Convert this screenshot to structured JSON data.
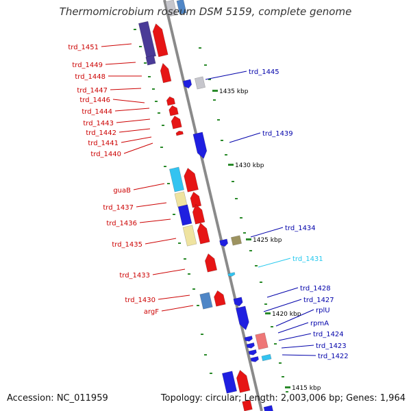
{
  "title": "Thermomicrobium roseum DSM 5159, complete genome",
  "footer": {
    "accession": "Accession: NC_011959",
    "topology": "Topology: circular; Length: 2,003,006 bp; Genes: 1,964"
  },
  "colors": {
    "red": "#e61515",
    "blue": "#1f1fe0",
    "dark_blue": "#4a3b97",
    "cyan": "#33c3f0",
    "pale_yellow": "#efe3a0",
    "olive": "#9d9360",
    "steel_blue": "#4f86c6",
    "light_gray": "#c6c6cc",
    "pink": "#ee7777",
    "label_red": "#cc0000",
    "label_blue": "#0000aa",
    "label_cyan": "#22c8ee",
    "tick_green": "#2a8a2a",
    "backbone": "#8a8a8a"
  },
  "ticks": [
    {
      "label": "1435 kbp"
    },
    {
      "label": "1430 kbp"
    },
    {
      "label": "1425 kbp"
    },
    {
      "label": "1420 kbp"
    },
    {
      "label": "1415 kbp"
    }
  ],
  "left_labels": [
    {
      "text": "trd_1451",
      "color": "red"
    },
    {
      "text": "trd_1449",
      "color": "red"
    },
    {
      "text": "trd_1448",
      "color": "red"
    },
    {
      "text": "trd_1447",
      "color": "red"
    },
    {
      "text": "trd_1446",
      "color": "red"
    },
    {
      "text": "trd_1444",
      "color": "red"
    },
    {
      "text": "trd_1443",
      "color": "red"
    },
    {
      "text": "trd_1442",
      "color": "red"
    },
    {
      "text": "trd_1441",
      "color": "red"
    },
    {
      "text": "trd_1440",
      "color": "red"
    },
    {
      "text": "guaB",
      "color": "red"
    },
    {
      "text": "trd_1437",
      "color": "red"
    },
    {
      "text": "trd_1436",
      "color": "red"
    },
    {
      "text": "trd_1435",
      "color": "red"
    },
    {
      "text": "trd_1433",
      "color": "red"
    },
    {
      "text": "trd_1430",
      "color": "red"
    },
    {
      "text": "argF",
      "color": "red"
    }
  ],
  "right_labels": [
    {
      "text": "trd_1445",
      "color": "blue"
    },
    {
      "text": "trd_1439",
      "color": "blue"
    },
    {
      "text": "trd_1434",
      "color": "blue"
    },
    {
      "text": "trd_1431",
      "color": "cyan"
    },
    {
      "text": "trd_1428",
      "color": "blue"
    },
    {
      "text": "trd_1427",
      "color": "blue"
    },
    {
      "text": "rplU",
      "color": "blue"
    },
    {
      "text": "rpmA",
      "color": "blue"
    },
    {
      "text": "trd_1424",
      "color": "blue"
    },
    {
      "text": "trd_1423",
      "color": "blue"
    },
    {
      "text": "trd_1422",
      "color": "blue"
    }
  ]
}
